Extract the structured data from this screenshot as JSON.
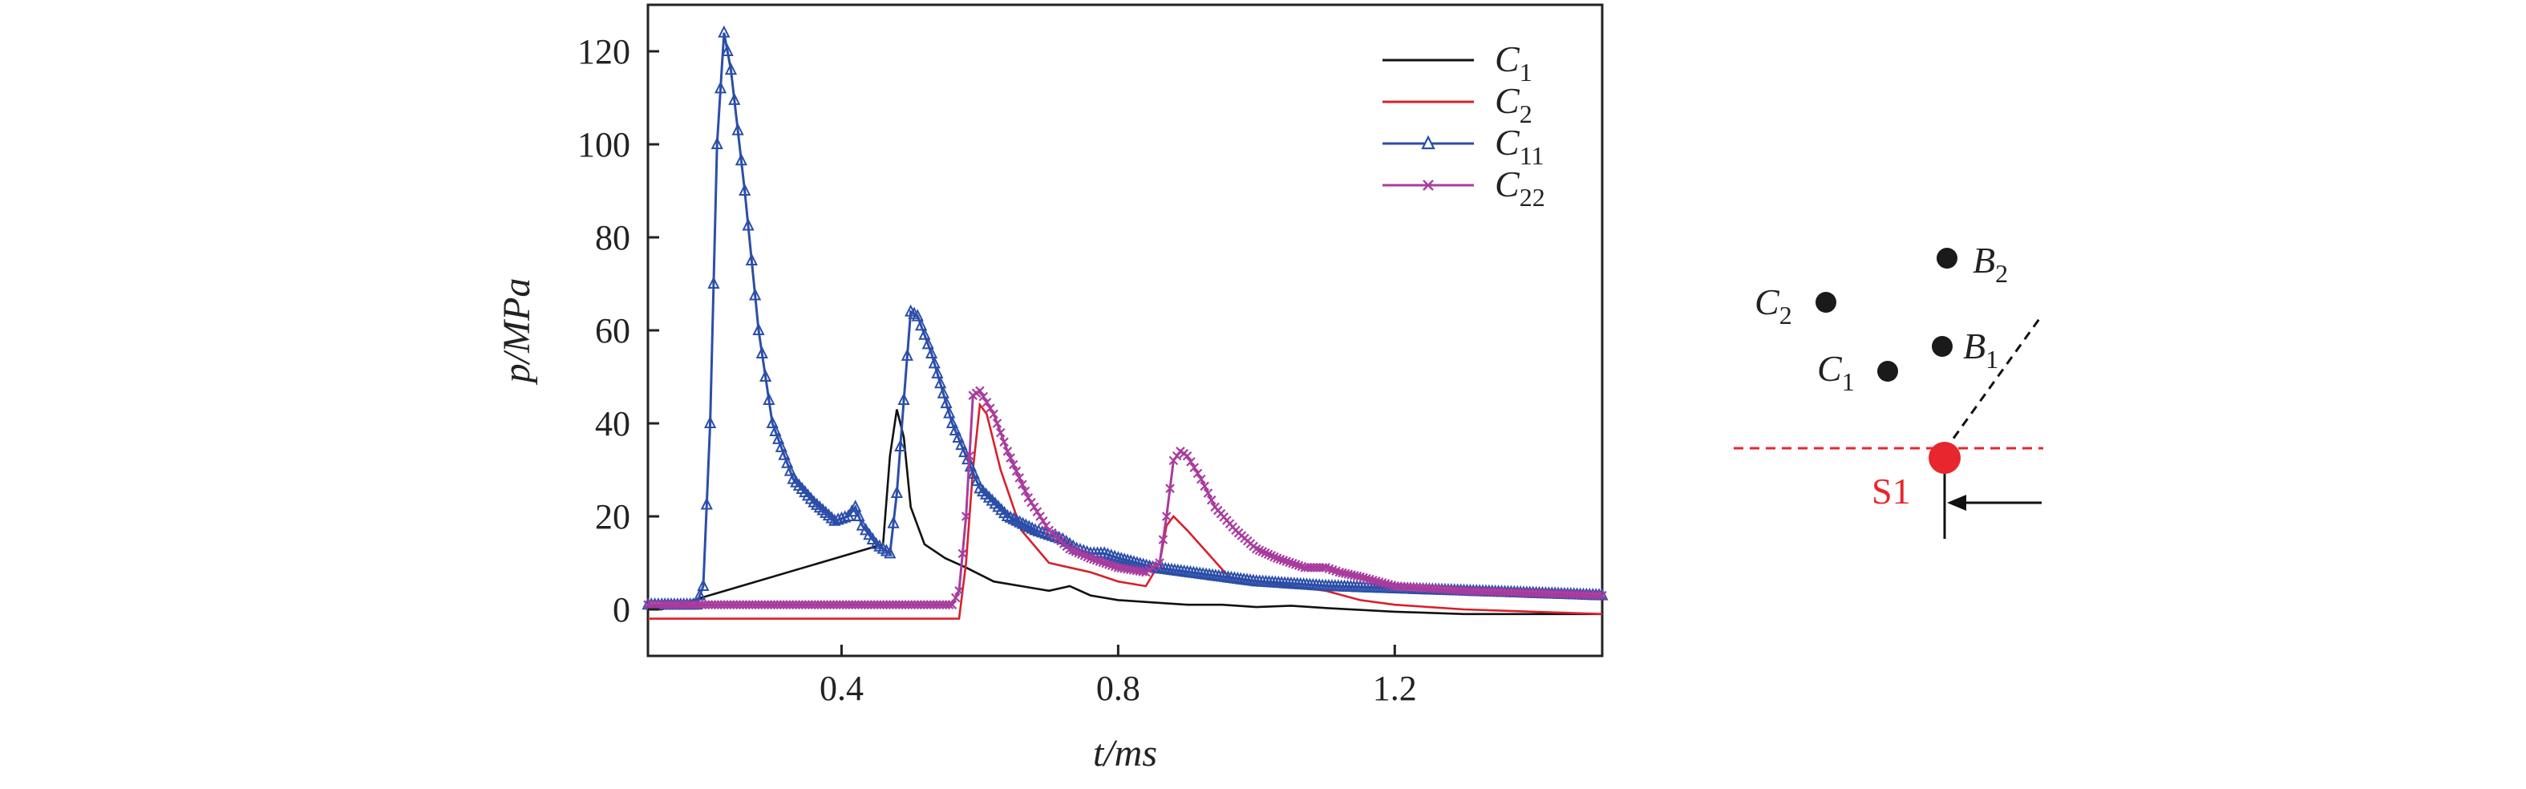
{
  "chart_data": {
    "type": "line",
    "title": "",
    "xlabel": "t/ms",
    "ylabel": "p/MPa",
    "xlim": [
      0.12,
      1.5
    ],
    "ylim": [
      -10,
      130
    ],
    "xticks": [
      0.4,
      0.8,
      1.2
    ],
    "xtick_labels": [
      "0.4",
      "0.8",
      "1.2"
    ],
    "yticks": [
      0,
      20,
      40,
      60,
      80,
      100,
      120
    ],
    "ytick_labels": [
      "0",
      "20",
      "40",
      "60",
      "80",
      "100",
      "120"
    ],
    "grid": false,
    "legend_position": "top-right",
    "series": [
      {
        "name": "C1",
        "name_main": "C",
        "name_sub": "1",
        "color": "#111111",
        "marker": "none",
        "x": [
          0.12,
          0.14,
          0.46,
          0.47,
          0.48,
          0.49,
          0.5,
          0.52,
          0.55,
          0.58,
          0.62,
          0.66,
          0.7,
          0.73,
          0.76,
          0.8,
          0.85,
          0.9,
          0.95,
          1.0,
          1.05,
          1.1,
          1.2,
          1.3,
          1.4,
          1.5
        ],
        "y": [
          0,
          0,
          14,
          33,
          43,
          37,
          22,
          14,
          11,
          9,
          6,
          5,
          4,
          5,
          3,
          2,
          1.5,
          1,
          1,
          0.5,
          0.8,
          0.3,
          -0.5,
          -1,
          -1,
          -1
        ]
      },
      {
        "name": "C2",
        "name_main": "C",
        "name_sub": "2",
        "color": "#d8202a",
        "marker": "none",
        "x": [
          0.12,
          0.13,
          0.57,
          0.58,
          0.59,
          0.6,
          0.61,
          0.63,
          0.66,
          0.7,
          0.73,
          0.76,
          0.8,
          0.84,
          0.86,
          0.87,
          0.88,
          0.9,
          0.93,
          0.96,
          1.0,
          1.05,
          1.1,
          1.15,
          1.2,
          1.3,
          1.4,
          1.5
        ],
        "y": [
          -2,
          -2,
          -2,
          10,
          30,
          44,
          42,
          30,
          17,
          10,
          9,
          8,
          6,
          5,
          10,
          18,
          20,
          17,
          12,
          7,
          6,
          5,
          4,
          2,
          1,
          0,
          -0.5,
          -1
        ]
      },
      {
        "name": "C11",
        "name_main": "C",
        "name_sub": "11",
        "color": "#2b4ea8",
        "marker": "triangle",
        "x": [
          0.12,
          0.14,
          0.19,
          0.2,
          0.21,
          0.22,
          0.23,
          0.24,
          0.26,
          0.28,
          0.3,
          0.33,
          0.36,
          0.39,
          0.41,
          0.42,
          0.43,
          0.45,
          0.47,
          0.48,
          0.49,
          0.5,
          0.51,
          0.53,
          0.56,
          0.6,
          0.64,
          0.68,
          0.7,
          0.72,
          0.74,
          0.76,
          0.78,
          0.8,
          0.85,
          0.9,
          0.95,
          1.0,
          1.1,
          1.2,
          1.3,
          1.4,
          1.5
        ],
        "y": [
          1,
          1,
          1,
          5,
          40,
          100,
          124,
          116,
          90,
          60,
          40,
          28,
          23,
          19,
          20,
          22,
          18,
          14,
          12,
          25,
          45,
          64,
          63,
          55,
          40,
          26,
          20,
          17,
          16,
          15,
          13,
          12,
          12,
          11,
          9,
          8,
          7,
          6,
          5,
          4.5,
          4,
          3.5,
          3
        ]
      },
      {
        "name": "C22",
        "name_main": "C",
        "name_sub": "22",
        "color": "#a83c9e",
        "marker": "x",
        "x": [
          0.12,
          0.14,
          0.56,
          0.57,
          0.58,
          0.59,
          0.6,
          0.62,
          0.64,
          0.67,
          0.7,
          0.73,
          0.76,
          0.8,
          0.84,
          0.86,
          0.87,
          0.88,
          0.89,
          0.9,
          0.92,
          0.94,
          0.97,
          1.0,
          1.03,
          1.07,
          1.1,
          1.12,
          1.15,
          1.2,
          1.3,
          1.4,
          1.5
        ],
        "y": [
          1,
          1,
          1,
          4,
          20,
          46,
          47,
          42,
          34,
          24,
          17,
          13,
          11,
          9,
          8,
          10,
          20,
          32,
          34,
          33,
          28,
          22,
          17,
          13,
          11,
          9,
          9,
          8,
          7,
          5,
          4,
          3.5,
          3
        ]
      }
    ]
  },
  "schematic": {
    "points": [
      {
        "label_main": "C",
        "label_sub": "2",
        "color": "#1a1a1a"
      },
      {
        "label_main": "B",
        "label_sub": "2",
        "color": "#1a1a1a"
      },
      {
        "label_main": "C",
        "label_sub": "1",
        "color": "#1a1a1a"
      },
      {
        "label_main": "B",
        "label_sub": "1",
        "color": "#1a1a1a"
      }
    ],
    "source": {
      "label": "S1",
      "color": "#e8262d"
    },
    "arrow_icon": "left-arrow-icon"
  }
}
